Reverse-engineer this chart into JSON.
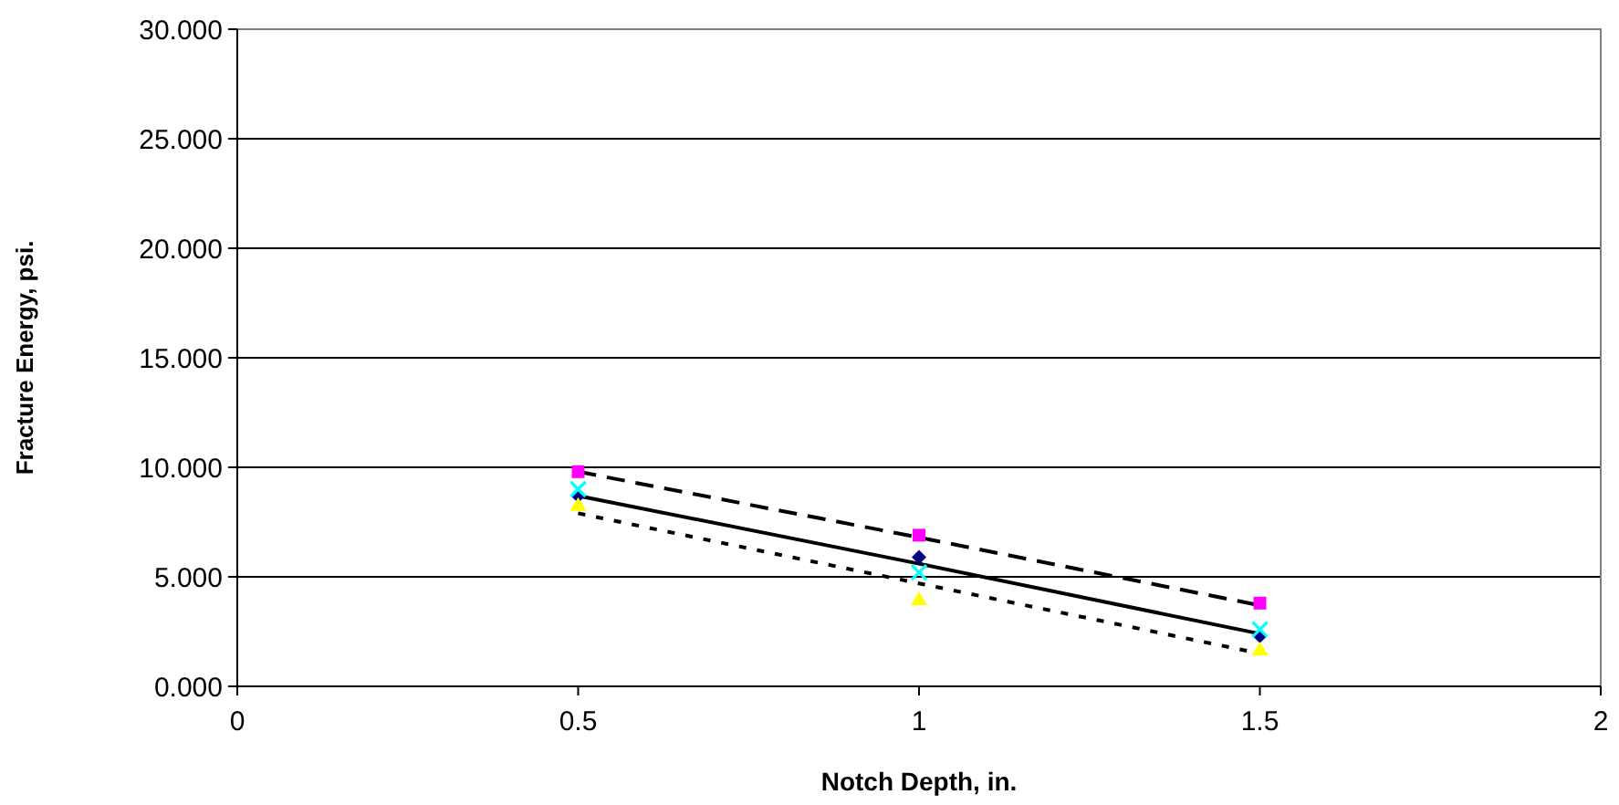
{
  "chart_data": {
    "type": "scatter",
    "xlabel": "Notch Depth, in.",
    "ylabel": "Fracture Energy, psi.",
    "x": [
      0.5,
      1,
      1.5
    ],
    "xlim": [
      0,
      2
    ],
    "xticks": [
      0,
      0.5,
      1,
      1.5,
      2
    ],
    "ylim": [
      0,
      30
    ],
    "yticks": [
      {
        "value": 0,
        "label": "0.000"
      },
      {
        "value": 5,
        "label": "5.000"
      },
      {
        "value": 10,
        "label": "10.000"
      },
      {
        "value": 15,
        "label": "15.000"
      },
      {
        "value": 20,
        "label": "20.000"
      },
      {
        "value": 25,
        "label": "25.000"
      },
      {
        "value": 30,
        "label": "30.000"
      }
    ],
    "grid": "y",
    "series": [
      {
        "type": "line",
        "color": "#000000",
        "values": [
          9.8,
          6.8,
          3.7
        ],
        "line_style": "dashed",
        "marker": "none"
      },
      {
        "type": "line",
        "color": "#000000",
        "values": [
          8.7,
          5.6,
          2.4
        ],
        "line_style": "solid",
        "marker": "none"
      },
      {
        "type": "line",
        "color": "#000000",
        "values": [
          7.9,
          4.7,
          1.5
        ],
        "line_style": "dotted",
        "marker": "none"
      },
      {
        "type": "scatter",
        "color": "#000080",
        "values": [
          8.7,
          5.9,
          2.3
        ],
        "marker": "diamond"
      },
      {
        "type": "scatter",
        "color": "#ff00ff",
        "values": [
          9.8,
          6.9,
          3.8
        ],
        "marker": "square"
      },
      {
        "type": "scatter",
        "color": "#ffff00",
        "values": [
          8.3,
          4.0,
          1.7
        ],
        "marker": "triangle"
      },
      {
        "type": "scatter",
        "color": "#00ffff",
        "values": [
          9.0,
          5.2,
          2.6
        ],
        "marker": "cross"
      }
    ]
  }
}
